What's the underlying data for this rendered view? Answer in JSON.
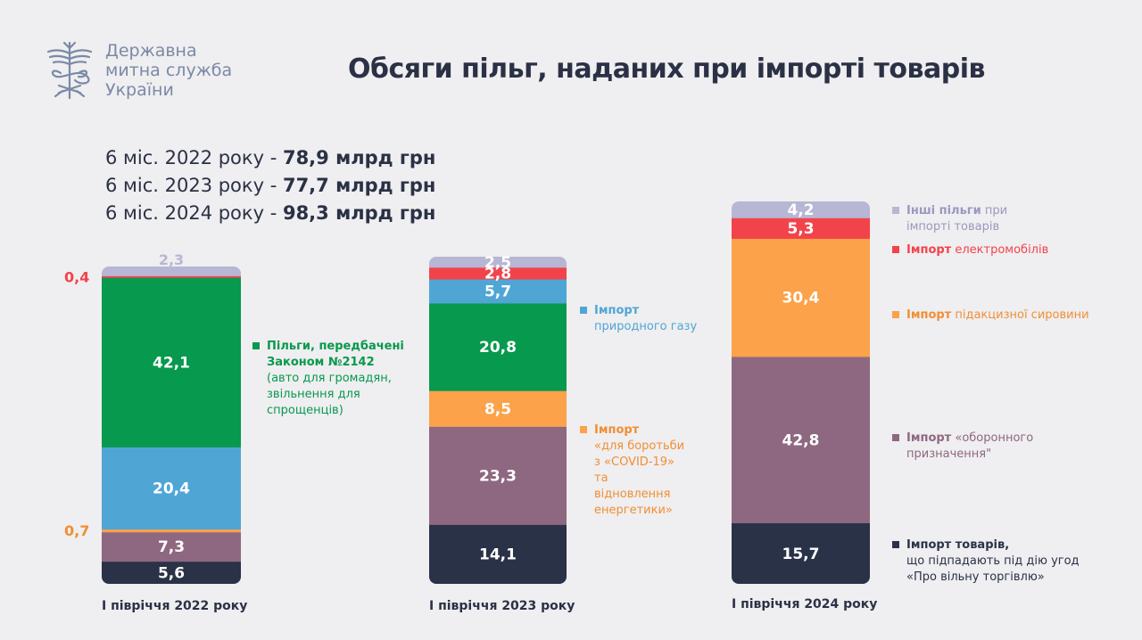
{
  "org": {
    "line1": "Державна",
    "line2": "митна служба",
    "line3": "України"
  },
  "title": "Обсяги пільг, наданих при імпорті товарів",
  "totals": [
    {
      "label": "6 міс. 2022 року - ",
      "value": "78,9 млрд грн"
    },
    {
      "label": "6 міс. 2023 року - ",
      "value": "77,7 млрд грн"
    },
    {
      "label": "6 міс. 2024 року - ",
      "value": "98,3 млрд грн"
    }
  ],
  "colors": {
    "other": "#b7b6d4",
    "ev": "#f2434b",
    "gas": "#4fa6d5",
    "law2142": "#07994e",
    "covid": "#fba24a",
    "excise": "#fba24a",
    "defense": "#8e6880",
    "fta": "#2a3248",
    "text_dark": "#2b3145"
  },
  "legend": {
    "l2022_law": {
      "bold": "Пільги, передбачені Законом №2142",
      "normal": "(авто для громадян, звільнення для спрощенців)"
    },
    "l2023_gas": {
      "bold": "Імпорт",
      "normal": "природного газу"
    },
    "l2023_covid": {
      "bold": "Імпорт",
      "normal": "«для боротьби з «COVID-19» та відновлення енергетики»"
    },
    "l2024_other": {
      "bold": "Інші пільги",
      "normal": "при імпорті товарів"
    },
    "l2024_ev": {
      "bold": "Імпорт",
      "normal": "електромобілів"
    },
    "l2024_excise": {
      "bold": "Імпорт",
      "normal": "підакцизної сировини"
    },
    "l2024_defense": {
      "bold": "Імпорт",
      "normal": "«оборонного призначення\""
    },
    "l2024_fta": {
      "bold": "Імпорт товарів,",
      "normal": "що підпадають під дію угод «Про вільну торгівлю»"
    }
  },
  "chart_data": {
    "type": "bar",
    "stacked": true,
    "categories": [
      "І півріччя 2022 року",
      "І півріччя 2023 року",
      "І півріччя 2024 року"
    ],
    "segments": [
      {
        "category": "І півріччя 2022 року",
        "items": [
          {
            "key": "fta",
            "value": 5.6,
            "label": "5,6"
          },
          {
            "key": "defense",
            "value": 7.3,
            "label": "7,3"
          },
          {
            "key": "covid",
            "value": 0.7,
            "label": "0,7",
            "outside": true
          },
          {
            "key": "gas",
            "value": 20.4,
            "label": "20,4"
          },
          {
            "key": "law2142",
            "value": 42.1,
            "label": "42,1"
          },
          {
            "key": "ev",
            "value": 0.4,
            "label": "0,4",
            "outside": true
          },
          {
            "key": "other",
            "value": 2.3,
            "label": "2,3",
            "above": true
          }
        ]
      },
      {
        "category": "І півріччя 2023 року",
        "items": [
          {
            "key": "fta",
            "value": 14.1,
            "label": "14,1"
          },
          {
            "key": "defense",
            "value": 23.3,
            "label": "23,3"
          },
          {
            "key": "covid",
            "value": 8.5,
            "label": "8,5"
          },
          {
            "key": "law2142",
            "value": 20.8,
            "label": "20,8"
          },
          {
            "key": "gas",
            "value": 5.7,
            "label": "5,7"
          },
          {
            "key": "ev",
            "value": 2.8,
            "label": "2,8"
          },
          {
            "key": "other",
            "value": 2.5,
            "label": "2,5"
          }
        ]
      },
      {
        "category": "І півріччя 2024 року",
        "items": [
          {
            "key": "fta",
            "value": 15.7,
            "label": "15,7"
          },
          {
            "key": "defense",
            "value": 42.8,
            "label": "42,8"
          },
          {
            "key": "excise",
            "value": 30.4,
            "label": "30,4"
          },
          {
            "key": "ev",
            "value": 5.3,
            "label": "5,3"
          },
          {
            "key": "other",
            "value": 4.2,
            "label": "4,2"
          }
        ]
      }
    ]
  }
}
